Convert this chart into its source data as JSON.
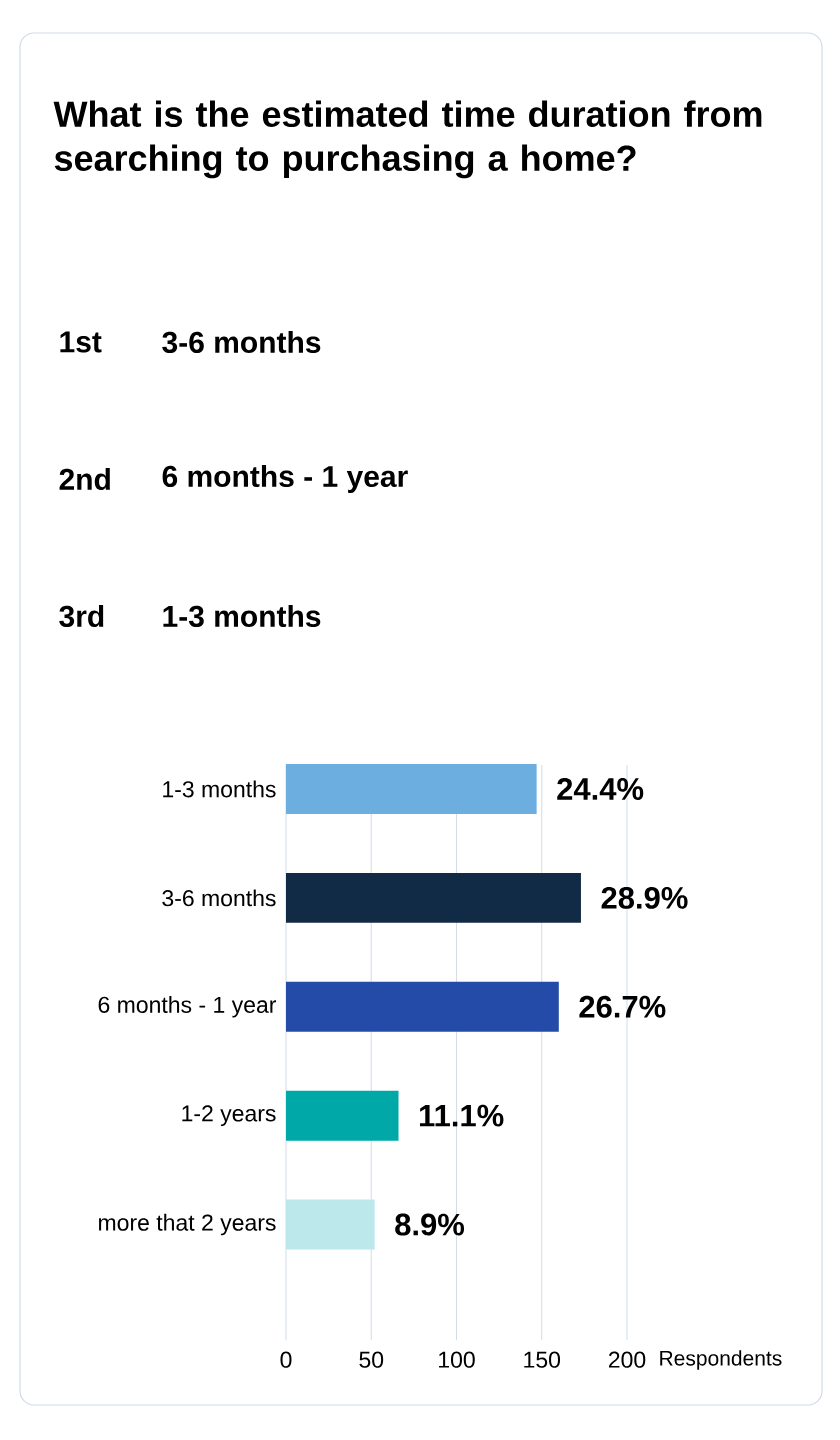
{
  "chart_data": {
    "type": "bar",
    "orientation": "horizontal",
    "title": "What is the estimated time duration from searching to purchasing a home?",
    "annotations": [
      "1st",
      "3-6 months",
      "2nd",
      "6 months - 1 year",
      "3rd",
      "1-3 months",
      {
        "text": "24.4%",
        "x": 147,
        "y": "1-3 months"
      },
      {
        "text": "28.9%",
        "x": 173,
        "y": "3-6 months"
      },
      {
        "text": "26.7%",
        "x": 160,
        "y": "6 months - 1 year"
      },
      {
        "text": "11.1%",
        "x": 66,
        "y": "1-2 years"
      },
      {
        "text": "8.9%",
        "x": 52,
        "y": "more that 2 years"
      }
    ],
    "categories": [
      "1-3 months",
      "3-6 months",
      "6 months - 1 year",
      "1-2 years",
      "more that 2 years"
    ],
    "values": [
      147,
      173,
      160,
      66,
      52
    ],
    "colors": [
      "#6daee0",
      "#112a45",
      "#244ba8",
      "#00a8a8",
      "#bce8ec"
    ],
    "xlabel": "Respondents",
    "xlim": [
      0,
      200
    ],
    "xticks": [
      0,
      50,
      100,
      150,
      200
    ],
    "grid": "x"
  }
}
